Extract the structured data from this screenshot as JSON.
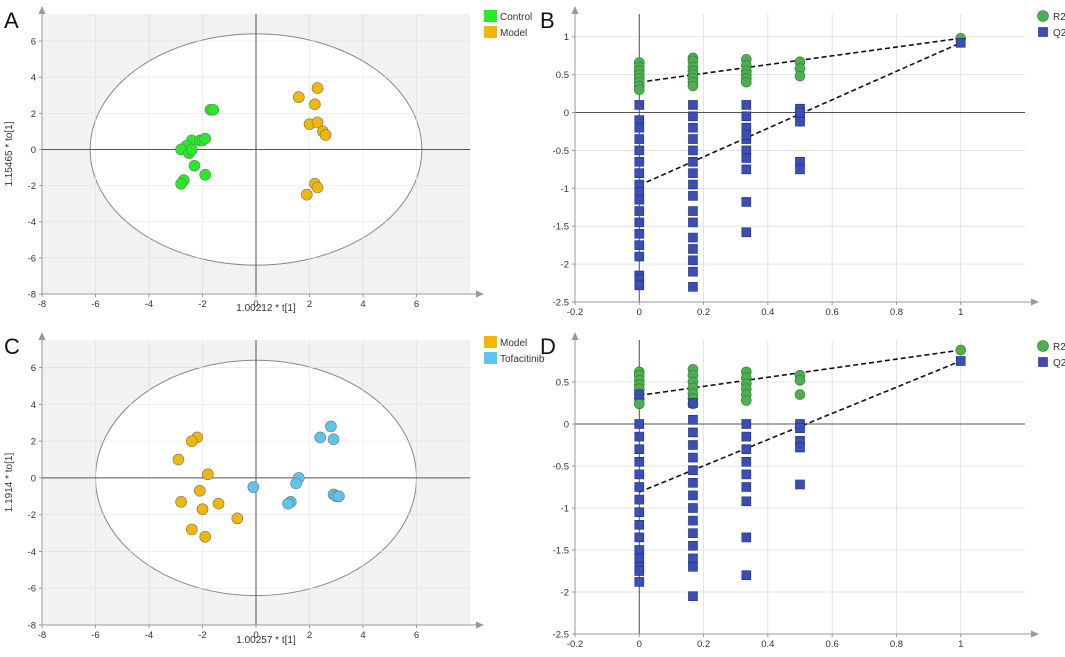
{
  "chart_data": [
    {
      "panel": "A",
      "type": "scatter",
      "xlabel": "1.00212 * t[1]",
      "ylabel": "1.15465 * to[1]",
      "xlim": [
        -8,
        8
      ],
      "ylim": [
        -8,
        7.5
      ],
      "xticks": [
        -8,
        -6,
        -4,
        -2,
        0,
        2,
        4,
        6
      ],
      "yticks": [
        -8,
        -6,
        -4,
        -2,
        0,
        2,
        4,
        6
      ],
      "ellipse": {
        "cx": 0,
        "cy": 0,
        "rx": 6.2,
        "ry": 6.4
      },
      "series": [
        {
          "name": "Control",
          "color": "#22ee22",
          "x": [
            -1.7,
            -1.6,
            -2.4,
            -2.1,
            -2.0,
            -1.9,
            -2.6,
            -2.8,
            -2.5,
            -2.4,
            -2.3,
            -1.9,
            -2.7,
            -2.8
          ],
          "y": [
            2.2,
            2.2,
            0.5,
            0.5,
            0.5,
            0.6,
            0.2,
            0.0,
            -0.2,
            0.0,
            -0.9,
            -1.4,
            -1.7,
            -1.9
          ]
        },
        {
          "name": "Model",
          "color": "#f0b800",
          "x": [
            1.6,
            2.3,
            2.2,
            2.0,
            2.3,
            2.5,
            2.6,
            2.2,
            2.3,
            1.9
          ],
          "y": [
            2.9,
            3.4,
            2.5,
            1.4,
            1.5,
            1.0,
            0.8,
            -1.9,
            -2.1,
            -2.5
          ]
        }
      ]
    },
    {
      "panel": "B",
      "type": "scatter",
      "xlim": [
        -0.2,
        1.2
      ],
      "ylim": [
        -2.5,
        1.3
      ],
      "xticks": [
        -0.2,
        0,
        0.2,
        0.4,
        0.6,
        0.8,
        1
      ],
      "yticks": [
        -2.5,
        -2,
        -1.5,
        -1,
        -0.5,
        0,
        0.5,
        1
      ],
      "series": [
        {
          "name": "R2",
          "color": "#4caf50",
          "marker": "circle",
          "x": [
            0,
            0,
            0,
            0,
            0,
            0,
            0,
            0,
            0.167,
            0.167,
            0.167,
            0.167,
            0.167,
            0.167,
            0.167,
            0.167,
            0.333,
            0.333,
            0.333,
            0.333,
            0.333,
            0.333,
            0.5,
            0.5,
            0.5,
            1
          ],
          "y": [
            0.66,
            0.6,
            0.55,
            0.5,
            0.45,
            0.4,
            0.35,
            0.3,
            0.72,
            0.68,
            0.6,
            0.55,
            0.5,
            0.45,
            0.4,
            0.35,
            0.7,
            0.62,
            0.55,
            0.5,
            0.45,
            0.4,
            0.67,
            0.58,
            0.48,
            0.98
          ]
        },
        {
          "name": "Q2",
          "color": "#3a4db8",
          "marker": "square",
          "x": [
            0,
            0,
            0,
            0,
            0,
            0,
            0,
            0,
            0,
            0,
            0,
            0,
            0,
            0,
            0,
            0,
            0,
            0,
            0.167,
            0.167,
            0.167,
            0.167,
            0.167,
            0.167,
            0.167,
            0.167,
            0.167,
            0.167,
            0.167,
            0.167,
            0.167,
            0.167,
            0.167,
            0.167,
            0.333,
            0.333,
            0.333,
            0.333,
            0.333,
            0.333,
            0.333,
            0.333,
            0.333,
            0.333,
            0.5,
            0.5,
            0.5,
            0.5,
            0.5,
            0.5,
            1
          ],
          "y": [
            0.1,
            -0.1,
            -0.2,
            -0.35,
            -0.5,
            -0.65,
            -0.8,
            -0.95,
            -1.05,
            -1.15,
            -1.3,
            -1.45,
            -1.6,
            -1.75,
            -1.9,
            -2.15,
            -2.2,
            -2.28,
            0.1,
            -0.05,
            -0.2,
            -0.35,
            -0.5,
            -0.65,
            -0.8,
            -0.95,
            -1.1,
            -1.3,
            -1.45,
            -1.65,
            -1.8,
            -1.95,
            -2.1,
            -2.3,
            0.1,
            -0.05,
            -0.2,
            -0.35,
            -0.5,
            -0.6,
            -0.75,
            -1.18,
            -1.58,
            -0.3,
            0.05,
            -0.05,
            -0.12,
            -0.65,
            -0.75,
            0.0,
            0.92
          ]
        }
      ],
      "regression": [
        {
          "name": "R2",
          "from": [
            0,
            0.4
          ],
          "to": [
            1,
            0.98
          ]
        },
        {
          "name": "Q2",
          "from": [
            0,
            -0.96
          ],
          "to": [
            1,
            0.92
          ]
        }
      ]
    },
    {
      "panel": "C",
      "type": "scatter",
      "xlabel": "1.00257 * t[1]",
      "ylabel": "1.1914 * to[1]",
      "xlim": [
        -8,
        8
      ],
      "ylim": [
        -8,
        7.5
      ],
      "xticks": [
        -8,
        -6,
        -4,
        -2,
        0,
        2,
        4,
        6
      ],
      "yticks": [
        -8,
        -6,
        -4,
        -2,
        0,
        2,
        4,
        6
      ],
      "ellipse": {
        "cx": 0,
        "cy": 0,
        "rx": 6.0,
        "ry": 6.4
      },
      "series": [
        {
          "name": "Model",
          "color": "#f0b800",
          "x": [
            -2.2,
            -2.4,
            -2.9,
            -1.8,
            -2.1,
            -2.8,
            -1.4,
            -2.0,
            -0.7,
            -2.4,
            -1.9
          ],
          "y": [
            2.2,
            2.0,
            1.0,
            0.2,
            -0.7,
            -1.3,
            -1.4,
            -1.7,
            -2.2,
            -2.8,
            -3.2
          ]
        },
        {
          "name": "Tofacitinib",
          "color": "#5bc4f0",
          "x": [
            -0.1,
            1.6,
            1.5,
            1.3,
            1.2,
            2.4,
            2.8,
            2.9,
            2.9,
            3.0,
            3.1
          ],
          "y": [
            -0.5,
            0.0,
            -0.3,
            -1.3,
            -1.4,
            2.2,
            2.8,
            2.1,
            -0.9,
            -1.0,
            -1.0
          ]
        }
      ]
    },
    {
      "panel": "D",
      "type": "scatter",
      "xlim": [
        -0.2,
        1.2
      ],
      "ylim": [
        -2.5,
        1.0
      ],
      "xticks": [
        -0.2,
        0,
        0.2,
        0.4,
        0.6,
        0.8,
        1
      ],
      "yticks": [
        -2.5,
        -2,
        -1.5,
        -1,
        -0.5,
        0,
        0.5
      ],
      "series": [
        {
          "name": "R2",
          "color": "#4caf50",
          "marker": "circle",
          "x": [
            0,
            0,
            0,
            0,
            0,
            0,
            0,
            0,
            0.167,
            0.167,
            0.167,
            0.167,
            0.167,
            0.167,
            0.167,
            0.333,
            0.333,
            0.333,
            0.333,
            0.333,
            0.333,
            0.5,
            0.5,
            0.5,
            1
          ],
          "y": [
            0.62,
            0.58,
            0.52,
            0.47,
            0.42,
            0.36,
            0.3,
            0.24,
            0.65,
            0.58,
            0.5,
            0.43,
            0.36,
            0.3,
            0.24,
            0.62,
            0.55,
            0.48,
            0.42,
            0.35,
            0.28,
            0.58,
            0.52,
            0.35,
            0.88
          ]
        },
        {
          "name": "Q2",
          "color": "#3a4db8",
          "marker": "square",
          "x": [
            0,
            0,
            0,
            0,
            0,
            0,
            0,
            0,
            0,
            0,
            0,
            0,
            0,
            0,
            0,
            0,
            0.167,
            0.167,
            0.167,
            0.167,
            0.167,
            0.167,
            0.167,
            0.167,
            0.167,
            0.167,
            0.167,
            0.167,
            0.167,
            0.167,
            0.167,
            0.333,
            0.333,
            0.333,
            0.333,
            0.333,
            0.333,
            0.333,
            0.333,
            0.333,
            0.5,
            0.5,
            0.5,
            0.5,
            0.5,
            1
          ],
          "y": [
            0.35,
            0.0,
            -0.15,
            -0.3,
            -0.45,
            -0.6,
            -0.75,
            -0.9,
            -1.05,
            -1.2,
            -1.35,
            -1.5,
            -1.6,
            -1.7,
            -1.75,
            -1.88,
            0.25,
            0.05,
            -0.1,
            -0.25,
            -0.4,
            -0.55,
            -0.7,
            -0.85,
            -1.0,
            -1.15,
            -1.3,
            -1.45,
            -1.6,
            -1.7,
            -2.05,
            0.0,
            -0.15,
            -0.3,
            -0.45,
            -0.6,
            -0.75,
            -0.92,
            -1.35,
            -1.8,
            0.0,
            -0.05,
            -0.2,
            -0.28,
            -0.72,
            0.75
          ]
        }
      ],
      "regression": [
        {
          "name": "R2",
          "from": [
            0,
            0.34
          ],
          "to": [
            1,
            0.88
          ]
        },
        {
          "name": "Q2",
          "from": [
            0,
            -0.81
          ],
          "to": [
            1,
            0.75
          ]
        }
      ]
    }
  ]
}
